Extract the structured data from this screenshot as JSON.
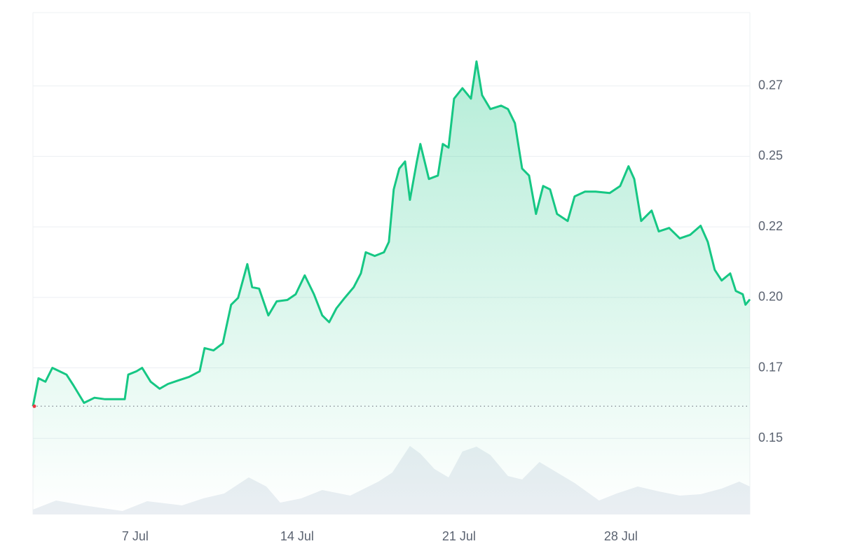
{
  "chart_data": {
    "type": "line",
    "xlim": [
      2.58,
      33.58
    ],
    "ylim": [
      0.123,
      0.301
    ],
    "xticks": [
      {
        "value": 7,
        "label": "7 Jul"
      },
      {
        "value": 14,
        "label": "14 Jul"
      },
      {
        "value": 21,
        "label": "21 Jul"
      },
      {
        "value": 28,
        "label": "28 Jul"
      }
    ],
    "yticks": [
      {
        "value": 0.15,
        "label": "0.15"
      },
      {
        "value": 0.175,
        "label": "0.17"
      },
      {
        "value": 0.2,
        "label": "0.20"
      },
      {
        "value": 0.225,
        "label": "0.22"
      },
      {
        "value": 0.25,
        "label": "0.25"
      },
      {
        "value": 0.275,
        "label": "0.27"
      }
    ],
    "grid": true,
    "baseline": 0.1614,
    "y2lim": [
      0,
      100
    ],
    "series": [
      {
        "color": "#16c784",
        "x": [
          2.58,
          2.82,
          3.12,
          3.42,
          3.73,
          4.03,
          4.33,
          4.79,
          5.24,
          5.7,
          6.15,
          6.55,
          6.7,
          7.06,
          7.3,
          7.67,
          8.06,
          8.42,
          8.88,
          9.33,
          9.79,
          10.0,
          10.39,
          10.79,
          11.15,
          11.45,
          11.85,
          12.06,
          12.36,
          12.76,
          13.12,
          13.58,
          13.94,
          14.33,
          14.73,
          15.09,
          15.39,
          15.7,
          16.06,
          16.45,
          16.76,
          16.97,
          17.36,
          17.76,
          17.97,
          18.18,
          18.42,
          18.67,
          18.88,
          19.18,
          19.33,
          19.7,
          20.09,
          20.3,
          20.55,
          20.79,
          21.15,
          21.52,
          21.76,
          22.0,
          22.36,
          22.82,
          23.12,
          23.42,
          23.73,
          24.03,
          24.33,
          24.64,
          24.94,
          25.24,
          25.7,
          26.0,
          26.45,
          26.91,
          27.52,
          27.97,
          28.33,
          28.58,
          28.88,
          29.33,
          29.64,
          30.09,
          30.55,
          31.0,
          31.45,
          31.76,
          32.06,
          32.36,
          32.73,
          32.97,
          33.27,
          33.39,
          33.58
        ],
        "values": [
          0.1614,
          0.1713,
          0.1701,
          0.175,
          0.1738,
          0.1726,
          0.1688,
          0.1626,
          0.1644,
          0.1639,
          0.1639,
          0.1639,
          0.1726,
          0.1738,
          0.175,
          0.1701,
          0.1676,
          0.1693,
          0.1706,
          0.1718,
          0.1738,
          0.182,
          0.1812,
          0.1837,
          0.1974,
          0.1998,
          0.2118,
          0.2036,
          0.2031,
          0.1936,
          0.1986,
          0.1991,
          0.2011,
          0.2078,
          0.2011,
          0.1936,
          0.1912,
          0.1961,
          0.1998,
          0.2036,
          0.2085,
          0.216,
          0.2147,
          0.216,
          0.2197,
          0.2383,
          0.2457,
          0.2482,
          0.2346,
          0.2482,
          0.2544,
          0.242,
          0.2432,
          0.2544,
          0.2531,
          0.2705,
          0.2742,
          0.2705,
          0.2837,
          0.2717,
          0.2668,
          0.268,
          0.2668,
          0.2618,
          0.2457,
          0.2432,
          0.2296,
          0.2395,
          0.2383,
          0.2296,
          0.2271,
          0.2358,
          0.2375,
          0.2375,
          0.237,
          0.2395,
          0.2465,
          0.242,
          0.2271,
          0.2308,
          0.2234,
          0.2246,
          0.2209,
          0.2222,
          0.2254,
          0.2197,
          0.2098,
          0.206,
          0.2085,
          0.2023,
          0.2011,
          0.1974,
          0.1993
        ]
      },
      {
        "color": "#eaeef3",
        "axis": "y2",
        "x": [
          2.58,
          3.58,
          4.79,
          6.45,
          7.52,
          9.03,
          9.94,
          10.85,
          11.91,
          12.67,
          13.27,
          14.18,
          15.09,
          16.3,
          17.52,
          18.12,
          18.88,
          19.33,
          19.94,
          20.55,
          21.15,
          21.76,
          22.36,
          23.12,
          23.73,
          24.48,
          25.09,
          26.0,
          27.06,
          27.82,
          28.73,
          29.64,
          30.55,
          31.45,
          32.36,
          33.12,
          33.58
        ],
        "values": [
          7,
          20,
          13,
          5,
          19,
          13,
          23,
          30,
          53,
          40,
          17,
          23,
          35,
          27,
          47,
          60,
          98,
          87,
          65,
          53,
          90,
          97,
          85,
          55,
          50,
          75,
          63,
          45,
          20,
          30,
          40,
          33,
          27,
          29,
          37,
          47,
          40
        ]
      }
    ]
  }
}
